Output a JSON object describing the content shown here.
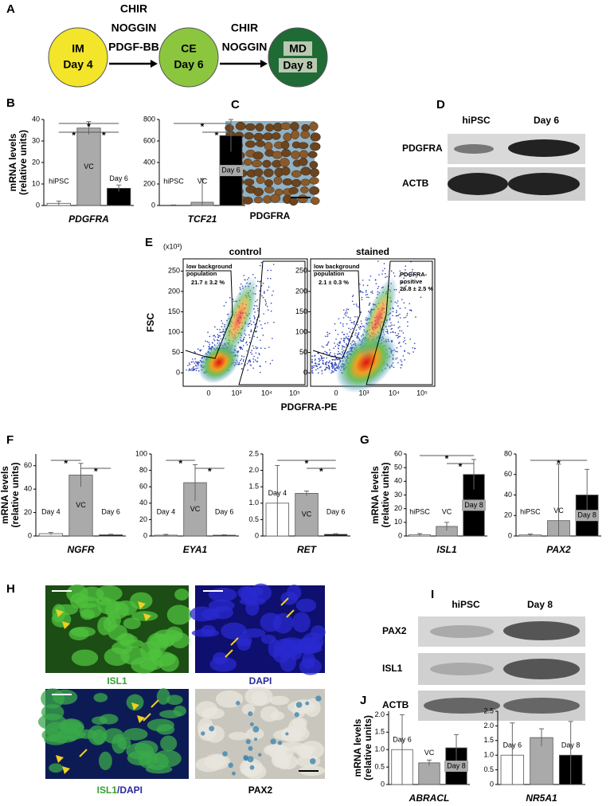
{
  "panel_labels": [
    "A",
    "B",
    "C",
    "D",
    "E",
    "F",
    "G",
    "H",
    "I",
    "J"
  ],
  "scheme": {
    "steps": [
      {
        "label": "IM",
        "sub": "Day 4"
      },
      {
        "label": "CE",
        "sub": "Day 6"
      },
      {
        "label": "MD",
        "sub": "Day 8"
      }
    ],
    "arrows": [
      [
        "CHIR",
        "NOGGIN",
        "PDGF-BB"
      ],
      [
        "CHIR",
        "NOGGIN"
      ]
    ]
  },
  "chart_data": [
    {
      "type": "bar",
      "ylabel": [
        "mRNA levels",
        "(relative units)"
      ],
      "xlabel": "PDGFRA",
      "categories": [
        "hiPSC",
        "VC",
        "Day 6"
      ],
      "values": [
        1,
        36,
        8
      ],
      "errors": [
        1,
        3,
        1.5
      ],
      "colors": [
        "#ffffff",
        "#aaaaaa",
        "#000000"
      ],
      "ylim": [
        0,
        40
      ],
      "yticks": [
        0,
        10,
        20,
        30,
        40
      ],
      "annotations": [
        "*",
        "*",
        "*"
      ]
    },
    {
      "type": "bar",
      "xlabel": "TCF21",
      "categories": [
        "hiPSC",
        "VC",
        "Day 6"
      ],
      "values": [
        0,
        30,
        650
      ],
      "errors": [
        5,
        220,
        150
      ],
      "colors": [
        "#ffffff",
        "#aaaaaa",
        "#000000"
      ],
      "ylim": [
        0,
        800
      ],
      "yticks": [
        0,
        200,
        400,
        600,
        800
      ],
      "annotations": [
        "*",
        "*"
      ]
    },
    {
      "type": "bar",
      "ylabel": [
        "mRNA levels",
        "(relative units)"
      ],
      "xlabel": "NGFR",
      "categories": [
        "Day 4",
        "VC",
        "Day 6"
      ],
      "values": [
        2,
        52,
        1
      ],
      "errors": [
        1,
        10,
        0.5
      ],
      "colors": [
        "#ffffff",
        "#aaaaaa",
        "#000000"
      ],
      "ylim": [
        0,
        70
      ],
      "yticks": [
        0,
        20,
        40,
        60
      ],
      "annotations": [
        "*",
        "*"
      ]
    },
    {
      "type": "bar",
      "xlabel": "EYA1",
      "categories": [
        "Day 4",
        "VC",
        "Day 6"
      ],
      "values": [
        1,
        65,
        1
      ],
      "errors": [
        1,
        22,
        0.5
      ],
      "colors": [
        "#ffffff",
        "#aaaaaa",
        "#000000"
      ],
      "ylim": [
        0,
        100
      ],
      "yticks": [
        0,
        20,
        40,
        60,
        80,
        100
      ],
      "annotations": [
        "*",
        "*"
      ]
    },
    {
      "type": "bar",
      "xlabel": "RET",
      "categories": [
        "Day 4",
        "VC",
        "Day 6"
      ],
      "values": [
        1.0,
        1.3,
        0.05
      ],
      "errors": [
        1.15,
        0.07,
        0.02
      ],
      "colors": [
        "#ffffff",
        "#aaaaaa",
        "#000000"
      ],
      "ylim": [
        0,
        2.5
      ],
      "yticks": [
        0,
        0.5,
        {
          "value": 1,
          "label": "1.0"
        },
        1.5,
        {
          "value": 2,
          "label": "2.0"
        },
        2.5
      ],
      "annotations": [
        "*",
        "*"
      ]
    },
    {
      "type": "bar",
      "ylabel": [
        "mRNA levels",
        "(relative units)"
      ],
      "xlabel": "ISL1",
      "categories": [
        "hiPSC",
        "VC",
        "Day 8"
      ],
      "values": [
        1,
        7,
        45
      ],
      "errors": [
        0.8,
        3,
        11
      ],
      "colors": [
        "#ffffff",
        "#aaaaaa",
        "#000000"
      ],
      "ylim": [
        0,
        60
      ],
      "yticks": [
        0,
        10,
        20,
        30,
        40,
        50,
        60
      ],
      "annotations": [
        "*",
        "*"
      ]
    },
    {
      "type": "bar",
      "xlabel": "PAX2",
      "categories": [
        "hiPSC",
        "VC",
        "Day 8"
      ],
      "values": [
        1,
        15,
        40
      ],
      "errors": [
        1,
        55,
        25
      ],
      "colors": [
        "#ffffff",
        "#aaaaaa",
        "#000000"
      ],
      "ylim": [
        0,
        80
      ],
      "yticks": [
        0,
        20,
        40,
        60,
        80
      ],
      "annotations": [
        "*"
      ]
    },
    {
      "type": "bar",
      "ylabel": [
        "mRNA levels",
        "(relative units)"
      ],
      "xlabel": "ABRACL",
      "categories": [
        "Day 6",
        "VC",
        "Day 8"
      ],
      "values": [
        1.0,
        0.62,
        1.05
      ],
      "errors": [
        1.0,
        0.08,
        0.38
      ],
      "colors": [
        "#ffffff",
        "#aaaaaa",
        "#000000"
      ],
      "ylim": [
        0,
        2.1
      ],
      "yticks": [
        0,
        0.5,
        {
          "value": 1,
          "label": "1.0"
        },
        1.5,
        {
          "value": 2,
          "label": "2.0"
        }
      ],
      "annotations": []
    },
    {
      "type": "bar",
      "xlabel": "NR5A1",
      "categories": [
        "Day 6",
        null,
        "Day 8"
      ],
      "values": [
        1.0,
        1.6,
        1.0
      ],
      "errors": [
        1.1,
        0.3,
        1.15
      ],
      "colors": [
        "#ffffff",
        "#aaaaaa",
        "#000000"
      ],
      "ylim": [
        0,
        2.5
      ],
      "yticks": [
        0,
        0.5,
        {
          "value": 1,
          "label": "1.0"
        },
        1.5,
        {
          "value": 2,
          "label": "2.0"
        },
        2.5
      ],
      "annotations": []
    }
  ],
  "stain_c": {
    "label": "PDGFRA"
  },
  "blot_d": {
    "lanes": [
      "hiPSC",
      "Day 6"
    ],
    "rows": [
      "PDGFRA",
      "ACTB"
    ]
  },
  "flow": {
    "multiplier": "(x10³)",
    "ylabel": "FSC",
    "xlabel": "PDGFRA-PE",
    "ylim": [
      -33,
      280
    ],
    "yticks": [
      0,
      50,
      100,
      150,
      200,
      250
    ],
    "xticks": [
      "0",
      "10³",
      "10⁴",
      "10⁵"
    ],
    "plots": [
      {
        "title": "control",
        "gates": [
          {
            "label": [
              "low background",
              "population"
            ],
            "value": "21.7 ± 3.2 %"
          }
        ]
      },
      {
        "title": "stained",
        "gates": [
          {
            "label": [
              "low background",
              "population"
            ],
            "value": "2.1 ± 0.3 %"
          },
          {
            "label": [
              "PDGFRA-",
              "positive"
            ],
            "value": "26.8 ± 2.5 %"
          }
        ]
      }
    ]
  },
  "images_h": {
    "labels": [
      [
        "ISL1"
      ],
      [
        "DAPI"
      ],
      [
        "ISL1",
        "/DAPI"
      ],
      [
        "PAX2"
      ]
    ]
  },
  "blot_i": {
    "lanes": [
      "hiPSC",
      "Day 8"
    ],
    "rows": [
      "PAX2",
      "ISL1",
      "ACTB"
    ]
  }
}
